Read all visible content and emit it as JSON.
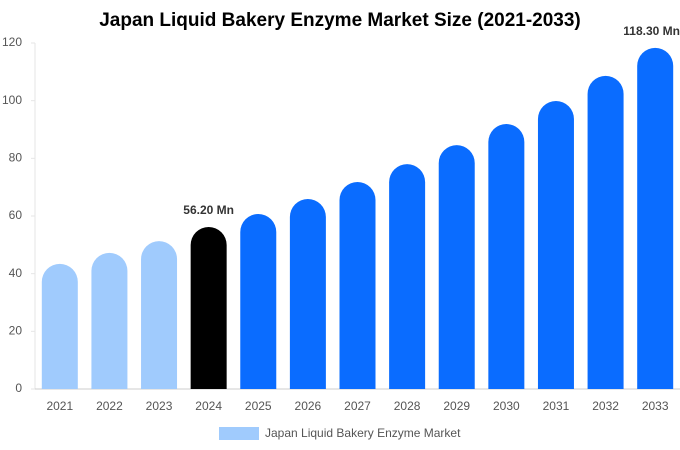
{
  "chart_data": {
    "type": "bar",
    "title": "Japan Liquid Bakery Enzyme Market Size (2021-2033)",
    "categories": [
      "2021",
      "2022",
      "2023",
      "2024",
      "2025",
      "2026",
      "2027",
      "2028",
      "2029",
      "2030",
      "2031",
      "2032",
      "2033"
    ],
    "series": [
      {
        "name": "Japan Liquid Bakery Enzyme Market",
        "color": "#a0cbfd",
        "values": [
          43.4,
          47.2,
          51.3,
          56.2,
          60.7,
          65.9,
          71.8,
          78.0,
          84.6,
          91.9,
          99.9,
          108.6,
          118.3
        ],
        "value_labels": [
          null,
          null,
          null,
          "56.20 Mn",
          null,
          null,
          null,
          null,
          null,
          null,
          null,
          null,
          "118.30 Mn"
        ],
        "bar_colors": [
          "#a0cbfd",
          "#a0cbfd",
          "#a0cbfd",
          "#000000",
          "#0a6cff",
          "#0a6cff",
          "#0a6cff",
          "#0a6cff",
          "#0a6cff",
          "#0a6cff",
          "#0a6cff",
          "#0a6cff",
          "#0a6cff"
        ]
      }
    ],
    "ylim": [
      0,
      120
    ],
    "yticks": [
      0,
      20,
      40,
      60,
      80,
      100,
      120
    ],
    "grid": false,
    "legend": "bottom"
  }
}
